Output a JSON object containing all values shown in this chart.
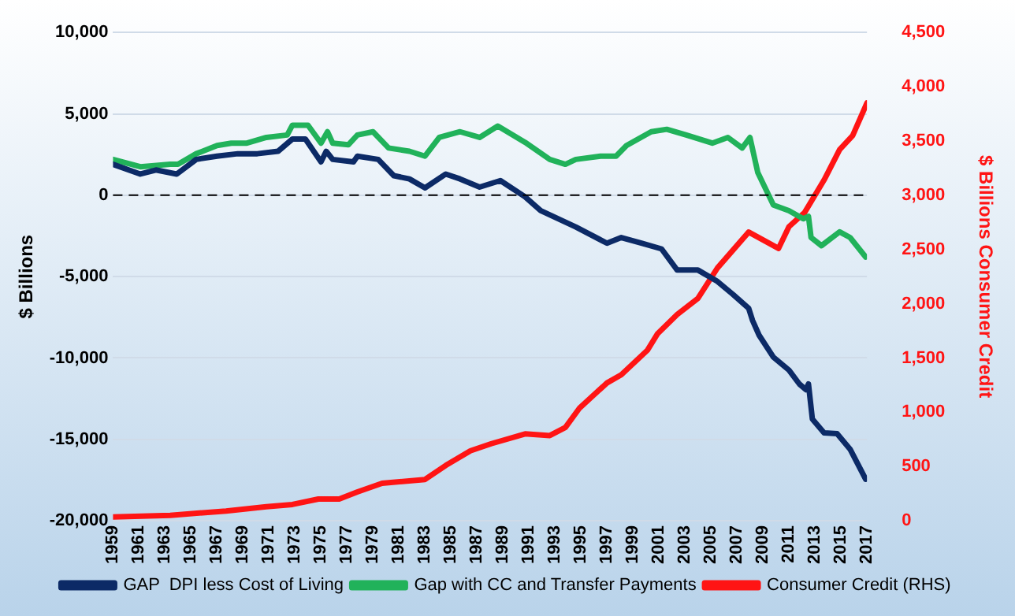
{
  "chart_data": {
    "type": "line",
    "ylabel": "$ Billions",
    "y2label": "$ Billions Consumer Credit",
    "xlim": [
      1959,
      2017
    ],
    "xticks": [
      1959,
      1961,
      1963,
      1965,
      1967,
      1969,
      1971,
      1973,
      1975,
      1977,
      1979,
      1981,
      1983,
      1985,
      1987,
      1989,
      1991,
      1993,
      1995,
      1997,
      1999,
      2001,
      2003,
      2005,
      2007,
      2009,
      2011,
      2013,
      2015,
      2017
    ],
    "ylim": [
      -20000,
      10000
    ],
    "yticks": [
      {
        "value": -20000,
        "label": "-20,000"
      },
      {
        "value": -15000,
        "label": "-15,000"
      },
      {
        "value": -10000,
        "label": "-10,000"
      },
      {
        "value": -5000,
        "label": "-5,000"
      },
      0,
      {
        "value": 5000,
        "label": "5,000"
      },
      {
        "value": 10000,
        "label": "10,000"
      }
    ],
    "y2lim": [
      0,
      4500
    ],
    "y2ticks": [
      0,
      500,
      {
        "value": 1000,
        "label": "1,000"
      },
      {
        "value": 1500,
        "label": "1,500"
      },
      {
        "value": 2000,
        "label": "2,000"
      },
      {
        "value": 2500,
        "label": "2,500"
      },
      {
        "value": 3000,
        "label": "3,000"
      },
      {
        "value": 3500,
        "label": "3,500"
      },
      {
        "value": 4000,
        "label": "4,000"
      },
      {
        "value": 4500,
        "label": "4,500"
      }
    ],
    "grid": "y",
    "legend": "bottom",
    "marker": "none",
    "ref_lines": [
      {
        "axis": "y",
        "value": 0,
        "color": "#000000",
        "line_style": "dashed"
      }
    ],
    "series": [
      {
        "name": "GAP  DPI less Cost of Living",
        "color": "#0c2a66",
        "x": [
          1959,
          1961.1,
          1962.3,
          1963.9,
          1965.4,
          1967,
          1968.6,
          1970.1,
          1971.7,
          1972.8,
          1973.8,
          1975,
          1975.4,
          1975.9,
          1977.5,
          1977.8,
          1979.4,
          1980.6,
          1981.8,
          1983,
          1984.6,
          1985.7,
          1987.2,
          1988.8,
          1990.7,
          1991.9,
          1994.6,
          1997,
          1998.1,
          1999.7,
          2001.2,
          2002.4,
          2004,
          2005.5,
          2006.7,
          2007.9,
          2008.2,
          2008.7,
          2009.8,
          2011,
          2011.8,
          2012.3,
          2012.5,
          2012.8,
          2013.7,
          2014.7,
          2015.7,
          2016.9
        ],
        "values": [
          1900,
          1300,
          1550,
          1300,
          2200,
          2400,
          2550,
          2550,
          2700,
          3450,
          3450,
          2050,
          2700,
          2200,
          2050,
          2400,
          2200,
          1200,
          1000,
          450,
          1300,
          1000,
          500,
          900,
          -100,
          -950,
          -1950,
          -2950,
          -2600,
          -2950,
          -3300,
          -4600,
          -4600,
          -5300,
          -6100,
          -6950,
          -7700,
          -8600,
          -9950,
          -10750,
          -11600,
          -11950,
          -11600,
          -13750,
          -14600,
          -14650,
          -15600,
          -17450
        ]
      },
      {
        "name": "Gap with CC and Transfer Payments",
        "color": "#21b25a",
        "x": [
          1959,
          1961.1,
          1963.4,
          1964,
          1965.4,
          1967,
          1968.1,
          1969.3,
          1970.8,
          1972.4,
          1972.8,
          1974,
          1975,
          1975.5,
          1975.9,
          1977.1,
          1977.8,
          1979,
          1980.2,
          1981.8,
          1983,
          1984.1,
          1985.7,
          1987.2,
          1988.6,
          1990.7,
          1992.6,
          1993.8,
          1994.6,
          1996.5,
          1997.7,
          1998.5,
          2000.4,
          2001.6,
          2003.1,
          2005.1,
          2006.3,
          2007.4,
          2008,
          2008.6,
          2009.8,
          2011,
          2012.1,
          2012.5,
          2012.7,
          2013.5,
          2014.9,
          2015.7,
          2016.9
        ],
        "values": [
          2200,
          1750,
          1900,
          1900,
          2550,
          3050,
          3200,
          3200,
          3550,
          3700,
          4300,
          4300,
          3200,
          3900,
          3200,
          3100,
          3700,
          3900,
          2900,
          2700,
          2400,
          3550,
          3900,
          3550,
          4250,
          3250,
          2200,
          1900,
          2200,
          2400,
          2400,
          3050,
          3900,
          4050,
          3700,
          3200,
          3550,
          2900,
          3550,
          1400,
          -600,
          -950,
          -1450,
          -1300,
          -2600,
          -3100,
          -2250,
          -2600,
          -3800
        ]
      },
      {
        "name": "Consumer Credit (RHS)",
        "color": "#ff1414",
        "axis": "y2",
        "x": [
          1959,
          1963.4,
          1967.7,
          1970.8,
          1972.8,
          1974.8,
          1976.4,
          1977.8,
          1979.7,
          1983,
          1984.6,
          1986.5,
          1988.1,
          1990.7,
          1992.6,
          1993.8,
          1994.9,
          1997,
          1998.1,
          2000.1,
          2000.9,
          2002.4,
          2004,
          2005.5,
          2007.9,
          2010.2,
          2011,
          2012.2,
          2013.7,
          2014.9,
          2015.9,
          2017
        ],
        "values": [
          35,
          50,
          90,
          130,
          150,
          200,
          200,
          265,
          345,
          380,
          510,
          645,
          710,
          800,
          785,
          860,
          1040,
          1270,
          1345,
          1570,
          1725,
          1900,
          2050,
          2330,
          2660,
          2510,
          2710,
          2840,
          3140,
          3420,
          3550,
          3850
        ]
      }
    ]
  }
}
